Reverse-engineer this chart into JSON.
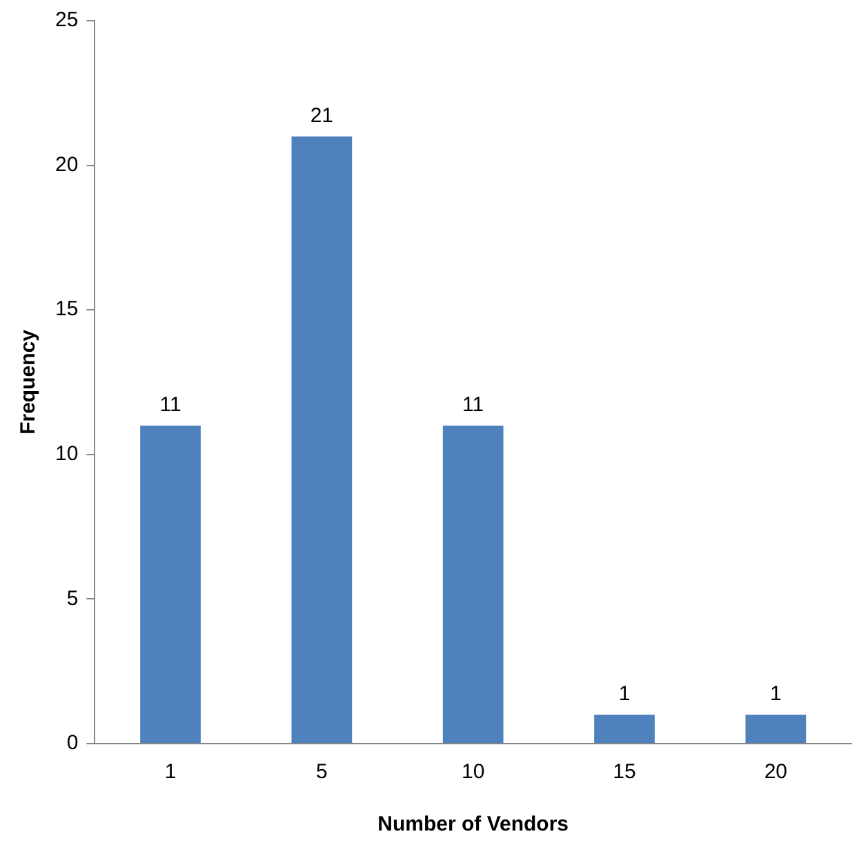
{
  "chart_data": {
    "type": "bar",
    "xlabel": "Number of Vendors",
    "ylabel": "Frequency",
    "categories": [
      "1",
      "5",
      "10",
      "15",
      "20"
    ],
    "values": [
      11,
      21,
      11,
      1,
      1
    ],
    "color": "#4f81bd",
    "ylim": [
      0,
      25
    ],
    "yticks": [
      0,
      5,
      10,
      15,
      20,
      25
    ],
    "grid": false,
    "data_labels": true
  }
}
